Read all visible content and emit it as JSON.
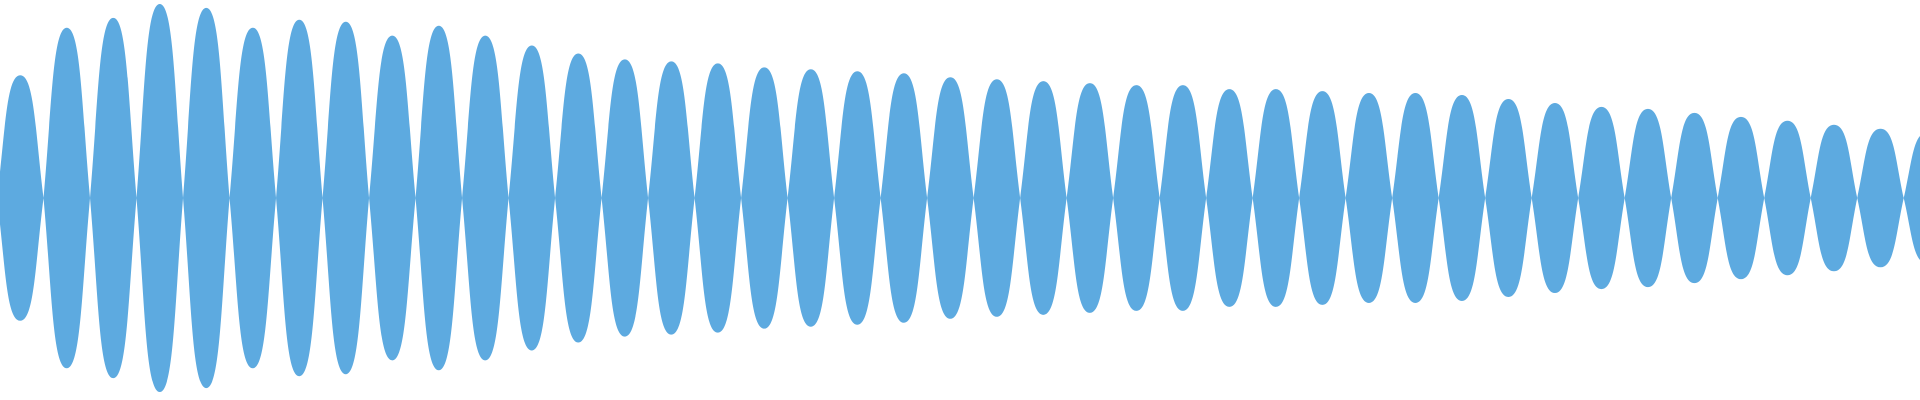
{
  "waveform": {
    "color": "#5DAAE0",
    "background": "#FFFFFF",
    "lobe_count": 42,
    "amplitudes": [
      0.62,
      0.86,
      0.91,
      0.98,
      0.96,
      0.86,
      0.9,
      0.89,
      0.82,
      0.87,
      0.82,
      0.77,
      0.73,
      0.7,
      0.69,
      0.68,
      0.66,
      0.65,
      0.64,
      0.63,
      0.61,
      0.6,
      0.59,
      0.58,
      0.57,
      0.57,
      0.55,
      0.55,
      0.54,
      0.53,
      0.53,
      0.52,
      0.5,
      0.48,
      0.46,
      0.45,
      0.43,
      0.41,
      0.39,
      0.37,
      0.35,
      0.33
    ],
    "last_lobe_fraction": 0.35
  }
}
